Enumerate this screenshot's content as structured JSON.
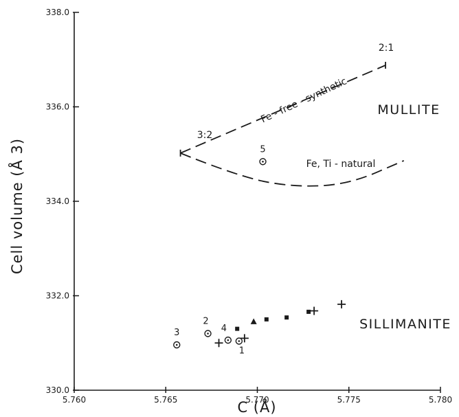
{
  "chart_data": {
    "type": "scatter",
    "title": "",
    "xlabel": "C (Å)",
    "ylabel": "Cell volume (Å 3)",
    "xlim": [
      5.76,
      5.78
    ],
    "ylim": [
      330.0,
      338.0
    ],
    "xticks": [
      5.76,
      5.765,
      5.77,
      5.775,
      5.78
    ],
    "yticks": [
      330.0,
      332.0,
      334.0,
      336.0,
      338.0
    ],
    "xtick_labels": [
      "5.760",
      "5.765",
      "5.770",
      "5.775",
      "5.780"
    ],
    "ytick_labels": [
      "330.0",
      "332.0",
      "334.0",
      "336.0",
      "338.0"
    ],
    "grid": false,
    "series": [
      {
        "marker": "circle-dot",
        "points": [
          {
            "x": 5.7656,
            "y": 330.96,
            "label": "3"
          },
          {
            "x": 5.7673,
            "y": 331.2,
            "label": "2"
          },
          {
            "x": 5.7684,
            "y": 331.06,
            "label": "4"
          },
          {
            "x": 5.769,
            "y": 331.04,
            "label": "1"
          },
          {
            "x": 5.7703,
            "y": 334.84,
            "label": "5"
          }
        ]
      },
      {
        "marker": "plus",
        "points": [
          {
            "x": 5.7679,
            "y": 331.0
          },
          {
            "x": 5.7693,
            "y": 331.1
          },
          {
            "x": 5.7731,
            "y": 331.68
          },
          {
            "x": 5.7746,
            "y": 331.82
          }
        ]
      },
      {
        "marker": "square",
        "points": [
          {
            "x": 5.7689,
            "y": 331.3
          },
          {
            "x": 5.7705,
            "y": 331.5
          },
          {
            "x": 5.7716,
            "y": 331.54
          },
          {
            "x": 5.7728,
            "y": 331.66
          }
        ]
      },
      {
        "marker": "triangle",
        "points": [
          {
            "x": 5.7698,
            "y": 331.45
          }
        ]
      }
    ],
    "lines": [
      {
        "label": "Fe - free - synthetic",
        "style": "dashed",
        "points": [
          [
            5.7658,
            335.02
          ],
          [
            5.777,
            336.88
          ]
        ],
        "end_labels": [
          "3:2",
          "2:1"
        ]
      },
      {
        "label": "Fe, Ti - natural",
        "style": "dashed",
        "points": [
          [
            5.7658,
            335.02
          ],
          [
            5.769,
            334.52
          ],
          [
            5.772,
            334.3
          ],
          [
            5.775,
            334.36
          ],
          [
            5.778,
            334.86
          ]
        ]
      }
    ],
    "regions": [
      "MULLITE",
      "SILLIMANITE"
    ]
  }
}
